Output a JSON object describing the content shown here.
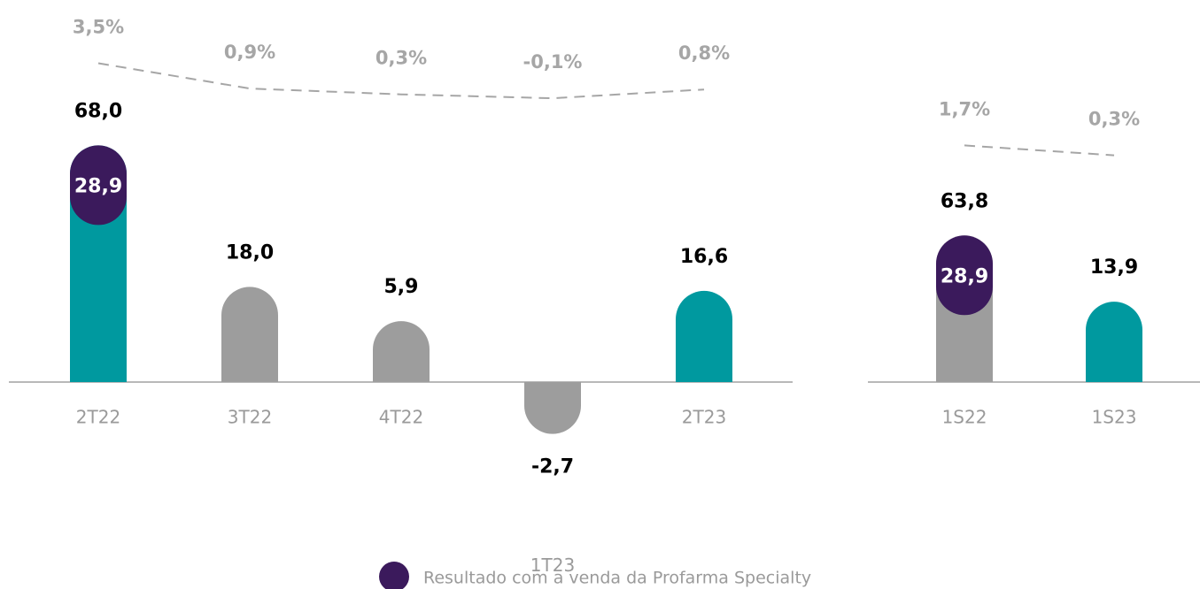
{
  "chart_data": [
    {
      "type": "bar",
      "categories": [
        "2T22",
        "3T22",
        "4T22",
        "1T23",
        "2T23"
      ],
      "values": [
        68.0,
        18.0,
        5.9,
        -2.7,
        16.6
      ],
      "value_labels": [
        "68,0",
        "18,0",
        "5,9",
        "-2,7",
        "16,6"
      ],
      "colors": [
        "#00999f",
        "#9d9d9d",
        "#9d9d9d",
        "#9d9d9d",
        "#00999f"
      ],
      "highlight": {
        "color": "#3b1a5c",
        "values": [
          28.9,
          null,
          null,
          null,
          null
        ],
        "value_labels": [
          "28,9",
          null,
          null,
          null,
          null
        ]
      },
      "margin": {
        "type": "line",
        "color": "#a6a6a6",
        "values": [
          3.5,
          0.9,
          0.3,
          -0.1,
          0.8
        ],
        "value_labels": [
          "3,5%",
          "0,9%",
          "0,3%",
          "-0,1%",
          "0,8%"
        ]
      }
    },
    {
      "type": "bar",
      "categories": [
        "1S22",
        "1S23"
      ],
      "values": [
        63.8,
        13.9
      ],
      "value_labels": [
        "63,8",
        "13,9"
      ],
      "colors": [
        "#9d9d9d",
        "#00999f"
      ],
      "highlight": {
        "color": "#3b1a5c",
        "values": [
          28.9,
          null
        ],
        "value_labels": [
          "28,9",
          null
        ]
      },
      "margin": {
        "type": "line",
        "color": "#a6a6a6",
        "values": [
          1.7,
          0.3
        ],
        "value_labels": [
          "1,7%",
          "0,3%"
        ]
      }
    }
  ],
  "legend": {
    "label": "Resultado com a venda da Profarma Specialty",
    "color": "#3b1a5c"
  }
}
